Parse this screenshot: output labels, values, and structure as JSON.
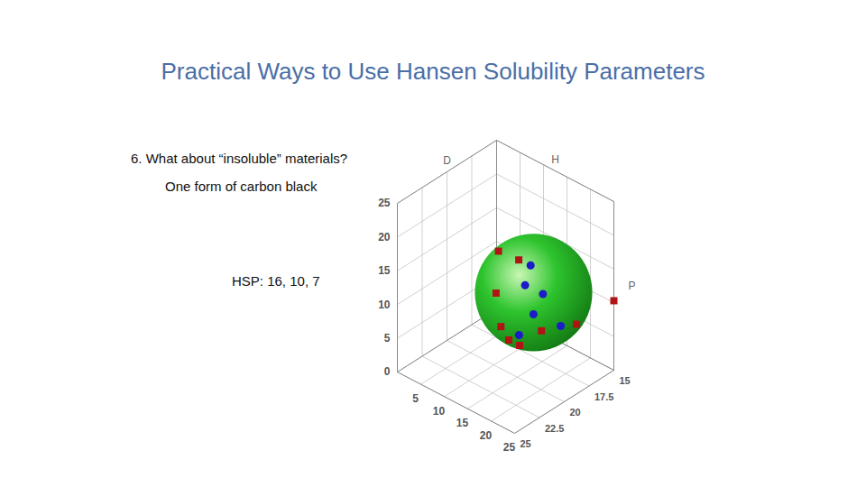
{
  "chart_data": {
    "type": "scatter3d",
    "title": "Practical Ways to Use Hansen Solubility Parameters",
    "annotations": [
      "6. What about “insoluble” materials?",
      "One form of carbon black",
      "HSP: 16, 10, 7"
    ],
    "xlabel": "D",
    "ylabel": "P",
    "zlabel": "H",
    "xlim": [
      15,
      25
    ],
    "xticks": [
      15,
      17.5,
      20,
      22.5,
      25
    ],
    "ylim": [
      0,
      25
    ],
    "yticks": [
      5,
      10,
      15,
      20,
      25
    ],
    "zlim": [
      0,
      25
    ],
    "zticks": [
      0,
      5,
      10,
      15,
      20,
      25
    ],
    "grid": true,
    "sphere": {
      "center": [
        16,
        10,
        7
      ],
      "radius": 8.7,
      "color": "#2ec42e"
    },
    "series": [
      {
        "color": "#1c1cc8",
        "marker": "circle",
        "x": [
          16.3,
          17.8,
          16,
          17.9,
          20.3,
          16.1
        ],
        "y": [
          10,
          12,
          12,
          14,
          16,
          16
        ],
        "z": [
          11.3,
          10.5,
          7.5,
          7,
          6.9,
          4.3
        ]
      },
      {
        "color": "#b01414",
        "marker": "square",
        "x": [
          16.7,
          15.6,
          16,
          15,
          17.4,
          18.5,
          19.3,
          17.1,
          16.4
        ],
        "y": [
          4,
          6,
          2,
          25,
          6,
          10,
          14,
          14,
          20
        ],
        "z": [
          11.6,
          10,
          4,
          10.3,
          1.8,
          2.3,
          3.7,
          3.8,
          6.3
        ]
      }
    ]
  }
}
